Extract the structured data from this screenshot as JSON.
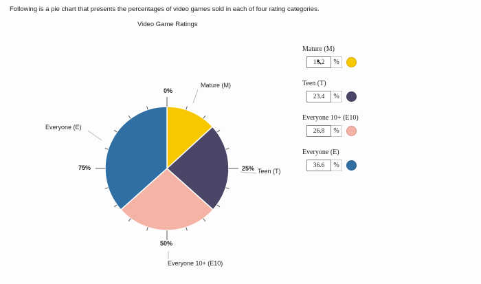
{
  "instruction": "Following is a pie chart that presents the percentages of video games sold in each of four rating categories.",
  "chart_title": "Video Game Ratings",
  "tick_labels": {
    "t0": "0%",
    "t25": "25%",
    "t50": "50%",
    "t75": "75%"
  },
  "slice_labels": {
    "mature": "Mature (M)",
    "teen": "Teen (T)",
    "e10": "Everyone 10+ (E10)",
    "everyone": "Everyone (E)"
  },
  "chart_data": {
    "type": "pie",
    "title": "Video Game Ratings",
    "categories": [
      "Mature (M)",
      "Teen (T)",
      "Everyone 10+ (E10)",
      "Everyone (E)"
    ],
    "values": [
      13.2,
      23.4,
      26.8,
      36.6
    ],
    "colors": [
      "#f7c800",
      "#4b4668",
      "#f5b3a6",
      "#2f6fa4"
    ],
    "ticks": [
      "0%",
      "25%",
      "50%",
      "75%"
    ]
  },
  "inputs": [
    {
      "label": "Mature (M)",
      "value": "13.2",
      "unit": "%",
      "color": "#f7c800"
    },
    {
      "label": "Teen (T)",
      "value": "23.4",
      "unit": "%",
      "color": "#4b4668"
    },
    {
      "label": "Everyone 10+ (E10)",
      "value": "26.8",
      "unit": "%",
      "color": "#f5b3a6"
    },
    {
      "label": "Everyone (E)",
      "value": "36.6",
      "unit": "%",
      "color": "#2f6fa4"
    }
  ]
}
